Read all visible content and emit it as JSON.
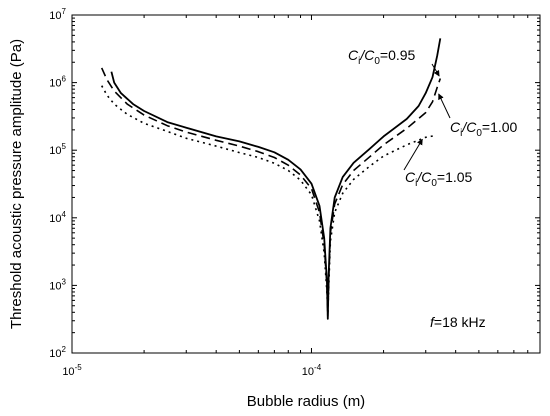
{
  "chart_data": {
    "type": "line",
    "title": "",
    "xlabel": "Bubble radius (m)",
    "ylabel": "Threshold acoustic pressure amplitude (Pa)",
    "xscale": "log",
    "yscale": "log",
    "xlim": [
      1e-05,
      0.0009
    ],
    "ylim": [
      100,
      10000000
    ],
    "grid": false,
    "x_ticks": [
      {
        "value": 1e-05,
        "base": "10",
        "exp": "-5"
      },
      {
        "value": 0.0001,
        "base": "10",
        "exp": "-4"
      }
    ],
    "y_ticks": [
      {
        "value": 100,
        "base": "10",
        "exp": "2"
      },
      {
        "value": 1000,
        "base": "10",
        "exp": "3"
      },
      {
        "value": 10000,
        "base": "10",
        "exp": "4"
      },
      {
        "value": 100000,
        "base": "10",
        "exp": "5"
      },
      {
        "value": 1000000,
        "base": "10",
        "exp": "6"
      },
      {
        "value": 10000000,
        "base": "10",
        "exp": "7"
      }
    ],
    "series": [
      {
        "name": "Ci/C0=0.95",
        "style": "solid",
        "points": [
          [
            1.46e-05,
            1450000
          ],
          [
            1.5e-05,
            1000000
          ],
          [
            1.6e-05,
            700000
          ],
          [
            1.8e-05,
            480000
          ],
          [
            2e-05,
            380000
          ],
          [
            2.5e-05,
            260000
          ],
          [
            3e-05,
            215000
          ],
          [
            4e-05,
            160000
          ],
          [
            5e-05,
            135000
          ],
          [
            6e-05,
            112000
          ],
          [
            7e-05,
            93000
          ],
          [
            8e-05,
            72000
          ],
          [
            9e-05,
            52000
          ],
          [
            0.0001,
            32000
          ],
          [
            0.000108,
            15000
          ],
          [
            0.000113,
            5000
          ],
          [
            0.000116,
            1200
          ],
          [
            0.000117,
            320
          ],
          [
            0.000118,
            1500
          ],
          [
            0.00012,
            7000
          ],
          [
            0.000125,
            20000
          ],
          [
            0.000135,
            40000
          ],
          [
            0.00015,
            65000
          ],
          [
            0.000175,
            105000
          ],
          [
            0.0002,
            160000
          ],
          [
            0.00025,
            290000
          ],
          [
            0.00028,
            450000
          ],
          [
            0.0003,
            700000
          ],
          [
            0.00032,
            1200000
          ],
          [
            0.000335,
            2500000
          ],
          [
            0.000345,
            4500000
          ]
        ]
      },
      {
        "name": "Ci/C0=1.00",
        "style": "dashed",
        "points": [
          [
            1.33e-05,
            1650000
          ],
          [
            1.4e-05,
            1100000
          ],
          [
            1.5e-05,
            750000
          ],
          [
            1.7e-05,
            480000
          ],
          [
            2e-05,
            330000
          ],
          [
            2.5e-05,
            230000
          ],
          [
            3e-05,
            185000
          ],
          [
            4e-05,
            140000
          ],
          [
            5e-05,
            115000
          ],
          [
            6e-05,
            95000
          ],
          [
            7e-05,
            78000
          ],
          [
            8e-05,
            60000
          ],
          [
            9e-05,
            43000
          ],
          [
            0.0001,
            27000
          ],
          [
            0.000108,
            12000
          ],
          [
            0.000113,
            4000
          ],
          [
            0.000116,
            1000
          ],
          [
            0.000117,
            350
          ],
          [
            0.000118,
            1200
          ],
          [
            0.00012,
            6000
          ],
          [
            0.000125,
            16000
          ],
          [
            0.000135,
            31000
          ],
          [
            0.00015,
            50000
          ],
          [
            0.000175,
            80000
          ],
          [
            0.0002,
            120000
          ],
          [
            0.00025,
            210000
          ],
          [
            0.0003,
            360000
          ],
          [
            0.00032,
            520000
          ],
          [
            0.000335,
            850000
          ],
          [
            0.000345,
            1150000
          ]
        ]
      },
      {
        "name": "Ci/C0=1.05",
        "style": "dotted",
        "points": [
          [
            1.33e-05,
            900000
          ],
          [
            1.4e-05,
            650000
          ],
          [
            1.5e-05,
            480000
          ],
          [
            1.7e-05,
            340000
          ],
          [
            2e-05,
            250000
          ],
          [
            2.5e-05,
            190000
          ],
          [
            3e-05,
            150000
          ],
          [
            4e-05,
            115000
          ],
          [
            5e-05,
            92000
          ],
          [
            6e-05,
            78000
          ],
          [
            7e-05,
            64000
          ],
          [
            8e-05,
            50000
          ],
          [
            9e-05,
            36000
          ],
          [
            0.0001,
            22000
          ],
          [
            0.000108,
            9000
          ],
          [
            0.000113,
            3000
          ],
          [
            0.000116,
            800
          ],
          [
            0.000117,
            380
          ],
          [
            0.000118,
            900
          ],
          [
            0.00012,
            4500
          ],
          [
            0.000125,
            12000
          ],
          [
            0.000135,
            23000
          ],
          [
            0.00015,
            37000
          ],
          [
            0.000175,
            58000
          ],
          [
            0.0002,
            82000
          ],
          [
            0.00025,
            120000
          ],
          [
            0.0003,
            155000
          ],
          [
            0.00033,
            165000
          ]
        ]
      }
    ],
    "annotations": [
      {
        "id": "c095",
        "main": "C",
        "sub1": "i",
        "mid": "/C",
        "sub2": "0",
        "tail": "=0.95"
      },
      {
        "id": "c100",
        "main": "C",
        "sub1": "i",
        "mid": "/C",
        "sub2": "0",
        "tail": "=1.00"
      },
      {
        "id": "c105",
        "main": "C",
        "sub1": "i",
        "mid": "/C",
        "sub2": "0",
        "tail": "=1.05"
      },
      {
        "id": "freq",
        "italic": "f",
        "text": "=18 kHz"
      }
    ]
  }
}
